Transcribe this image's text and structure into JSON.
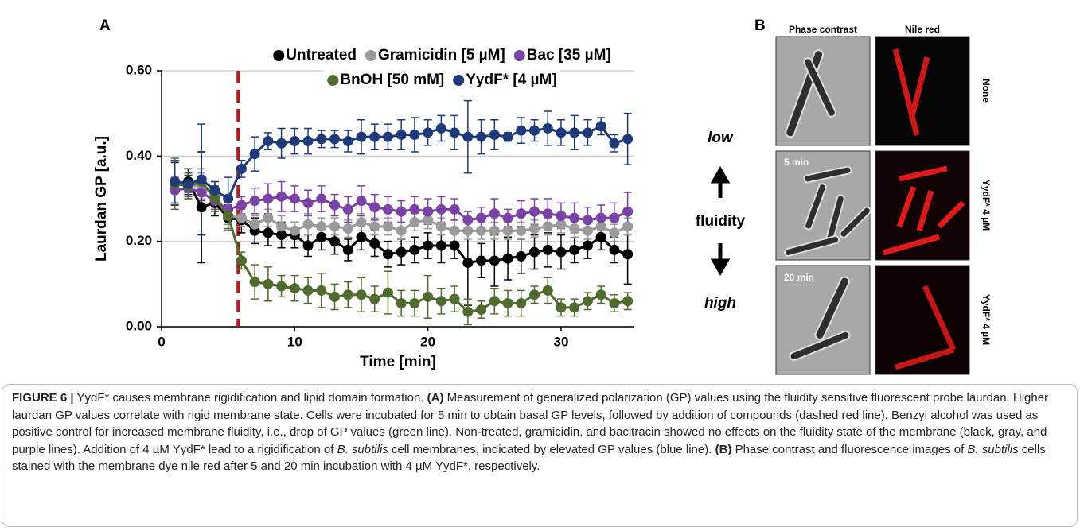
{
  "chart_data": {
    "type": "line",
    "panel_label": "A",
    "xlabel": "Time [min]",
    "ylabel": "Laurdan GP [a.u.]",
    "xlim": [
      0,
      35.5
    ],
    "ylim": [
      0,
      0.6
    ],
    "xticks": [
      0,
      10,
      20,
      30
    ],
    "yticks": [
      {
        "value": 0,
        "label": "0.00"
      },
      {
        "value": 0.2,
        "label": "0.20"
      },
      {
        "value": 0.4,
        "label": "0.40"
      },
      {
        "value": 0.6,
        "label": "0.60"
      }
    ],
    "grid": true,
    "vline": {
      "x": 5.75,
      "color": "#c0151a"
    },
    "x": [
      1,
      2,
      3,
      4,
      5,
      6,
      7,
      8,
      9,
      10,
      11,
      12,
      13,
      14,
      15,
      16,
      17,
      18,
      19,
      20,
      21,
      22,
      23,
      24,
      25,
      26,
      27,
      28,
      29,
      30,
      31,
      32,
      33,
      34,
      35
    ],
    "series": [
      {
        "name": "Untreated",
        "color": "#000000",
        "values": [
          0.335,
          0.34,
          0.28,
          0.29,
          0.255,
          0.25,
          0.225,
          0.22,
          0.215,
          0.215,
          0.19,
          0.21,
          0.2,
          0.18,
          0.21,
          0.195,
          0.17,
          0.175,
          0.18,
          0.19,
          0.19,
          0.19,
          0.15,
          0.155,
          0.155,
          0.16,
          0.165,
          0.175,
          0.18,
          0.175,
          0.18,
          0.19,
          0.21,
          0.18,
          0.17
        ],
        "errors": [
          0.05,
          0.03,
          0.13,
          0.03,
          0.03,
          0.03,
          0.03,
          0.03,
          0.03,
          0.03,
          0.025,
          0.03,
          0.03,
          0.025,
          0.03,
          0.03,
          0.03,
          0.03,
          0.03,
          0.03,
          0.04,
          0.03,
          0.1,
          0.04,
          0.06,
          0.05,
          0.04,
          0.04,
          0.04,
          0.04,
          0.03,
          0.03,
          0.03,
          0.03,
          0.07
        ]
      },
      {
        "name": "Gramicidin [5 µM]",
        "color": "#9a9a9a",
        "values": [
          0.34,
          0.33,
          0.33,
          0.31,
          0.26,
          0.255,
          0.24,
          0.255,
          0.235,
          0.225,
          0.24,
          0.235,
          0.235,
          0.23,
          0.245,
          0.235,
          0.235,
          0.225,
          0.245,
          0.25,
          0.235,
          0.225,
          0.225,
          0.225,
          0.225,
          0.225,
          0.225,
          0.23,
          0.235,
          0.24,
          0.23,
          0.225,
          0.235,
          0.22,
          0.235
        ],
        "errors": [
          0.05,
          0.03,
          0.03,
          0.03,
          0.02,
          0.02,
          0.02,
          0.02,
          0.025,
          0.02,
          0.025,
          0.02,
          0.02,
          0.02,
          0.02,
          0.02,
          0.02,
          0.02,
          0.02,
          0.02,
          0.02,
          0.025,
          0.02,
          0.02,
          0.02,
          0.02,
          0.02,
          0.02,
          0.02,
          0.02,
          0.02,
          0.02,
          0.02,
          0.02,
          0.02
        ]
      },
      {
        "name": "Bac [35 µM]",
        "color": "#7b42a6",
        "values": [
          0.32,
          0.325,
          0.315,
          0.295,
          0.275,
          0.285,
          0.295,
          0.3,
          0.305,
          0.3,
          0.29,
          0.3,
          0.285,
          0.275,
          0.295,
          0.28,
          0.275,
          0.27,
          0.275,
          0.27,
          0.275,
          0.275,
          0.25,
          0.255,
          0.265,
          0.255,
          0.265,
          0.27,
          0.265,
          0.26,
          0.255,
          0.25,
          0.255,
          0.255,
          0.27
        ],
        "errors": [
          0.03,
          0.02,
          0.02,
          0.02,
          0.02,
          0.02,
          0.03,
          0.035,
          0.035,
          0.03,
          0.03,
          0.03,
          0.025,
          0.03,
          0.035,
          0.03,
          0.03,
          0.025,
          0.03,
          0.03,
          0.03,
          0.025,
          0.02,
          0.025,
          0.035,
          0.02,
          0.03,
          0.03,
          0.035,
          0.03,
          0.035,
          0.03,
          0.03,
          0.035,
          0.045
        ]
      },
      {
        "name": "BnOH [50 mM]",
        "color": "#4f6b2e",
        "values": [
          0.335,
          0.33,
          0.34,
          0.3,
          0.26,
          0.155,
          0.105,
          0.1,
          0.095,
          0.09,
          0.085,
          0.085,
          0.07,
          0.075,
          0.075,
          0.065,
          0.08,
          0.055,
          0.055,
          0.07,
          0.06,
          0.065,
          0.035,
          0.04,
          0.06,
          0.055,
          0.055,
          0.075,
          0.085,
          0.045,
          0.045,
          0.06,
          0.075,
          0.055,
          0.06
        ],
        "errors": [
          0.06,
          0.03,
          0.03,
          0.03,
          0.03,
          0.02,
          0.04,
          0.04,
          0.025,
          0.03,
          0.03,
          0.04,
          0.03,
          0.03,
          0.04,
          0.03,
          0.05,
          0.03,
          0.03,
          0.05,
          0.03,
          0.03,
          0.03,
          0.02,
          0.03,
          0.03,
          0.03,
          0.02,
          0.03,
          0.02,
          0.02,
          0.02,
          0.02,
          0.02,
          0.02
        ]
      },
      {
        "name": "YydF* [4 µM]",
        "color": "#1f3a7a",
        "values": [
          0.34,
          0.335,
          0.345,
          0.32,
          0.3,
          0.37,
          0.405,
          0.435,
          0.43,
          0.435,
          0.435,
          0.44,
          0.44,
          0.435,
          0.445,
          0.445,
          0.445,
          0.45,
          0.45,
          0.455,
          0.465,
          0.455,
          0.445,
          0.445,
          0.45,
          0.445,
          0.46,
          0.46,
          0.465,
          0.455,
          0.455,
          0.455,
          0.47,
          0.43,
          0.44
        ],
        "errors": [
          0.05,
          0.02,
          0.13,
          0.02,
          0.05,
          0.02,
          0.04,
          0.02,
          0.035,
          0.03,
          0.03,
          0.02,
          0.02,
          0.025,
          0.04,
          0.03,
          0.03,
          0.035,
          0.04,
          0.03,
          0.03,
          0.04,
          0.085,
          0.04,
          0.035,
          0.01,
          0.03,
          0.025,
          0.04,
          0.03,
          0.04,
          0.03,
          0.02,
          0.02,
          0.06
        ]
      }
    ],
    "annotations": [
      "low",
      "fluidity",
      "high"
    ]
  },
  "panel_b": {
    "label": "B",
    "columns": [
      "Phase contrast",
      "Nile red"
    ],
    "rows": [
      {
        "condition": "None"
      },
      {
        "time": "5 min",
        "condition": "YydF* 4 µM"
      },
      {
        "time": "20 min",
        "condition": "YydF* 4 µM"
      }
    ]
  },
  "caption": {
    "parts": [
      "FIGURE 6 |",
      " YydF* causes membrane rigidification and lipid domain formation. ",
      "(A)",
      " Measurement of generalized polarization (GP) values using the fluidity sensitive fluorescent probe laurdan. Higher laurdan GP values correlate with rigid membrane state. Cells were incubated for 5 min to obtain basal GP levels, followed by addition of compounds (dashed red line). Benzyl alcohol was used as positive control for increased membrane fluidity, i.e., drop of GP values (green line). Non-treated, gramicidin, and bacitracin showed no effects on the fluidity state of the membrane (black, gray, and purple lines). Addition of 4 µM YydF* lead to a rigidification of ",
      "B. subtilis",
      " cell membranes, indicated by elevated GP values (blue line). ",
      "(B)",
      " Phase contrast and fluorescence images of ",
      "B. subtilis",
      " cells stained with the membrane dye nile red after 5 and 20 min incubation with 4 µM YydF*, respectively."
    ]
  }
}
